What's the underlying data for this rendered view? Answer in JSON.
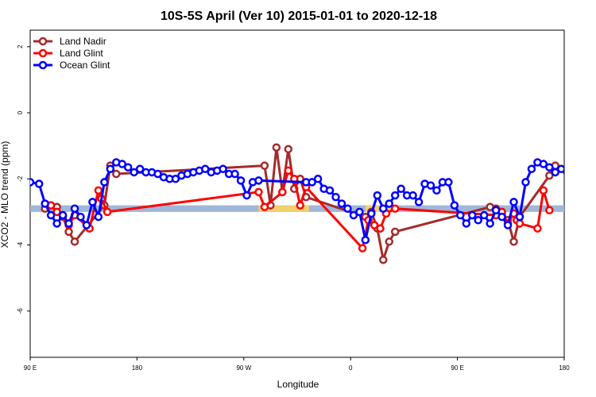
{
  "chart_data": {
    "type": "line",
    "title": "10S-5S April (Ver 10)   2015-01-01 to 2020-12-18",
    "xlabel": "Longitude",
    "ylabel": "XCO2 - MLO trend (ppm)",
    "xlim": [
      0,
      360
    ],
    "ylim": [
      -7.4,
      2.5
    ],
    "x_ticks": [
      {
        "value": 0,
        "label": "90 E"
      },
      {
        "value": 72,
        "label": "180"
      },
      {
        "value": 144,
        "label": "90 W"
      },
      {
        "value": 216,
        "label": "0"
      },
      {
        "value": 288,
        "label": "90 E"
      },
      {
        "value": 360,
        "label": "180"
      }
    ],
    "y_ticks": [
      {
        "value": 2,
        "label": "2"
      },
      {
        "value": 0,
        "label": "0"
      },
      {
        "value": -2,
        "label": "-2"
      },
      {
        "value": -4,
        "label": "-4"
      },
      {
        "value": -6,
        "label": "-6"
      }
    ],
    "band": {
      "y_range": [
        -3.0,
        -2.8
      ],
      "color": "#9fb7d8",
      "highlight_color": "#f3cf6e",
      "highlights": [
        [
          154,
          188
        ],
        [
          226,
          246
        ]
      ]
    },
    "legend": {
      "position": "top-left",
      "entries": [
        {
          "label": "Land Nadir",
          "color": "#a52a2a"
        },
        {
          "label": "Land Glint",
          "color": "#ff0000"
        },
        {
          "label": "Ocean Glint",
          "color": "#0000ff"
        }
      ]
    },
    "series": [
      {
        "name": "Land Nadir",
        "color": "#a52a2a",
        "x": [
          10,
          14,
          18,
          22,
          26,
          30,
          50,
          54,
          58,
          158,
          162,
          166,
          170,
          174,
          178,
          182,
          186,
          226,
          230,
          234,
          238,
          242,
          246,
          310,
          314,
          318,
          322,
          326,
          330,
          350,
          354
        ],
        "y": [
          -2.9,
          -2.8,
          -2.85,
          -3.15,
          -3.6,
          -3.9,
          -2.8,
          -1.6,
          -1.85,
          -1.6,
          -2.8,
          -1.05,
          -2.4,
          -1.1,
          -2.3,
          -2.0,
          -2.55,
          -3.15,
          -3.0,
          -3.5,
          -4.45,
          -3.9,
          -3.6,
          -2.85,
          -2.9,
          -3.1,
          -3.25,
          -3.9,
          -3.15,
          -1.9,
          -1.6
        ]
      },
      {
        "name": "Land Glint",
        "color": "#ff0000",
        "x": [
          14,
          18,
          22,
          26,
          30,
          40,
          46,
          48,
          52,
          154,
          158,
          170,
          174,
          178,
          182,
          186,
          224,
          228,
          232,
          236,
          240,
          246,
          314,
          318,
          322,
          326,
          328,
          330,
          342,
          346,
          350
        ],
        "y": [
          -2.8,
          -3.0,
          -3.1,
          -3.4,
          -3.1,
          -3.5,
          -2.35,
          -2.6,
          -3.0,
          -2.4,
          -2.85,
          -2.4,
          -1.75,
          -2.0,
          -2.8,
          -2.25,
          -4.1,
          -3.25,
          -3.4,
          -3.5,
          -3.05,
          -2.9,
          -3.1,
          -3.0,
          -3.35,
          -3.05,
          -3.25,
          -3.35,
          -3.5,
          -2.35,
          -2.95
        ]
      },
      {
        "name": "Ocean Glint",
        "color": "#0000ff",
        "x": [
          0,
          6,
          10,
          14,
          18,
          22,
          26,
          30,
          34,
          38,
          42,
          46,
          50,
          54,
          58,
          62,
          66,
          70,
          74,
          78,
          82,
          86,
          90,
          94,
          98,
          102,
          106,
          110,
          114,
          118,
          122,
          126,
          130,
          134,
          138,
          142,
          146,
          150,
          154,
          186,
          190,
          194,
          198,
          202,
          206,
          210,
          214,
          218,
          222,
          226,
          230,
          234,
          238,
          242,
          246,
          250,
          254,
          258,
          262,
          266,
          270,
          274,
          278,
          282,
          286,
          290,
          294,
          298,
          302,
          306,
          310,
          314,
          318,
          322,
          326,
          330,
          334,
          338,
          342,
          346,
          350,
          354,
          358,
          362,
          366,
          370,
          374
        ],
        "y": [
          -2.1,
          -2.15,
          -2.75,
          -3.1,
          -3.35,
          -3.1,
          -3.35,
          -2.9,
          -3.15,
          -3.4,
          -2.7,
          -3.15,
          -2.1,
          -1.7,
          -1.5,
          -1.55,
          -1.65,
          -1.8,
          -1.7,
          -1.8,
          -1.8,
          -1.85,
          -1.95,
          -2.0,
          -2.0,
          -1.9,
          -1.85,
          -1.8,
          -1.75,
          -1.7,
          -1.8,
          -1.75,
          -1.7,
          -1.85,
          -1.85,
          -2.05,
          -2.5,
          -2.1,
          -2.05,
          -2.1,
          -2.1,
          -2.0,
          -2.3,
          -2.35,
          -2.55,
          -2.75,
          -2.9,
          -3.1,
          -3.0,
          -3.85,
          -3.05,
          -2.5,
          -2.9,
          -2.75,
          -2.5,
          -2.3,
          -2.5,
          -2.5,
          -2.7,
          -2.15,
          -2.2,
          -2.35,
          -2.1,
          -2.1,
          -2.8,
          -3.1,
          -3.35,
          -3.1,
          -3.25,
          -3.1,
          -3.35,
          -2.95,
          -3.15,
          -3.4,
          -2.7,
          -3.15,
          -2.1,
          -1.7,
          -1.5,
          -1.55,
          -1.65,
          -1.8,
          -1.7,
          -1.8,
          -1.85,
          -1.85,
          -1.95
        ]
      }
    ]
  }
}
